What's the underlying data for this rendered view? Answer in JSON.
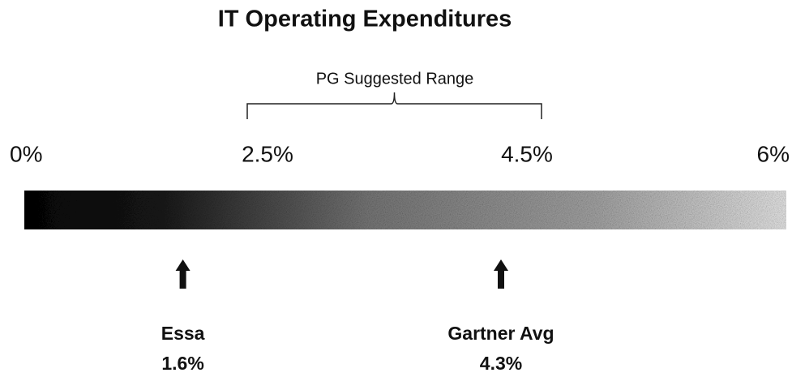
{
  "title": "IT Operating Expenditures",
  "scale": {
    "ticks": [
      {
        "value": 0,
        "label": "0%"
      },
      {
        "value": 2.5,
        "label": "2.5%"
      },
      {
        "value": 4.5,
        "label": "4.5%"
      },
      {
        "value": 6,
        "label": "6%"
      }
    ]
  },
  "range": {
    "label": "PG Suggested Range",
    "from": 2.5,
    "to": 4.5
  },
  "markers": [
    {
      "name": "Essa",
      "value": 1.6,
      "label": "1.6%"
    },
    {
      "name": "Gartner Avg",
      "value": 4.3,
      "label": "4.3%"
    }
  ]
}
